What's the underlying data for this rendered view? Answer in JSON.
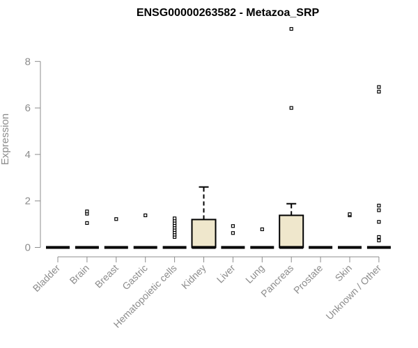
{
  "chart_data": {
    "type": "box",
    "title": "ENSG00000263582 - Metazoa_SRP",
    "ylabel": "Expression",
    "xlabel": "",
    "ylim": [
      0,
      9.5
    ],
    "yticks": [
      0,
      2,
      4,
      6,
      8
    ],
    "grid": false,
    "box_fill": "#efe7cc",
    "categories": [
      "Bladder",
      "Brain",
      "Breast",
      "Gastric",
      "Hematopoietic cells",
      "Kidney",
      "Liver",
      "Lung",
      "Pancreas",
      "Prostate",
      "Skin",
      "Unknown / Other"
    ],
    "boxes": [
      {
        "q1": 0,
        "median": 0,
        "q3": 0,
        "whisker_low": 0,
        "whisker_high": 0,
        "outliers": []
      },
      {
        "q1": 0,
        "median": 0,
        "q3": 0,
        "whisker_low": 0,
        "whisker_high": 0,
        "outliers": [
          1.05,
          1.45,
          1.55
        ]
      },
      {
        "q1": 0,
        "median": 0,
        "q3": 0,
        "whisker_low": 0,
        "whisker_high": 0,
        "outliers": [
          1.22
        ]
      },
      {
        "q1": 0,
        "median": 0,
        "q3": 0,
        "whisker_low": 0,
        "whisker_high": 0,
        "outliers": [
          1.38
        ]
      },
      {
        "q1": 0,
        "median": 0,
        "q3": 0,
        "whisker_low": 0,
        "whisker_high": 0,
        "outliers": [
          0.45,
          0.55,
          0.65,
          0.75,
          0.85,
          0.95,
          1.05,
          1.15,
          1.25
        ]
      },
      {
        "q1": 0,
        "median": 0,
        "q3": 1.2,
        "whisker_low": 0,
        "whisker_high": 2.6,
        "outliers": []
      },
      {
        "q1": 0,
        "median": 0,
        "q3": 0,
        "whisker_low": 0,
        "whisker_high": 0,
        "outliers": [
          0.62,
          0.92
        ]
      },
      {
        "q1": 0,
        "median": 0,
        "q3": 0,
        "whisker_low": 0,
        "whisker_high": 0,
        "outliers": [
          0.78
        ]
      },
      {
        "q1": 0,
        "median": 0,
        "q3": 1.38,
        "whisker_low": 0,
        "whisker_high": 1.88,
        "outliers": [
          6.0,
          9.4
        ]
      },
      {
        "q1": 0,
        "median": 0,
        "q3": 0,
        "whisker_low": 0,
        "whisker_high": 0,
        "outliers": []
      },
      {
        "q1": 0,
        "median": 0,
        "q3": 0,
        "whisker_low": 0,
        "whisker_high": 0,
        "outliers": [
          1.38,
          1.43
        ]
      },
      {
        "q1": 0,
        "median": 0,
        "q3": 0,
        "whisker_low": 0,
        "whisker_high": 0,
        "outliers": [
          0.3,
          0.45,
          1.1,
          1.6,
          1.8,
          6.7,
          6.9
        ]
      }
    ]
  }
}
